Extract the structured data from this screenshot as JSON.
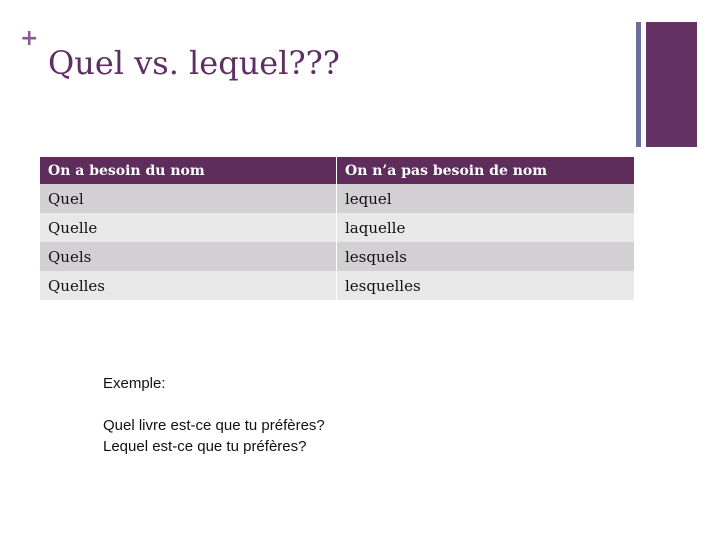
{
  "slide": {
    "marker": "+",
    "title": "Quel vs. lequel???",
    "table": {
      "header": [
        "On a besoin du nom",
        "On n’a pas besoin de nom"
      ],
      "rows": [
        [
          "Quel",
          "lequel"
        ],
        [
          "Quelle",
          "laquelle"
        ],
        [
          "Quels",
          "lesquels"
        ],
        [
          "Quelles",
          "lesquelles"
        ]
      ]
    },
    "example": {
      "label": "Exemple:",
      "lines": [
        "Quel livre est-ce que tu préfères?",
        "Lequel est-ce que tu préfères?"
      ]
    }
  }
}
